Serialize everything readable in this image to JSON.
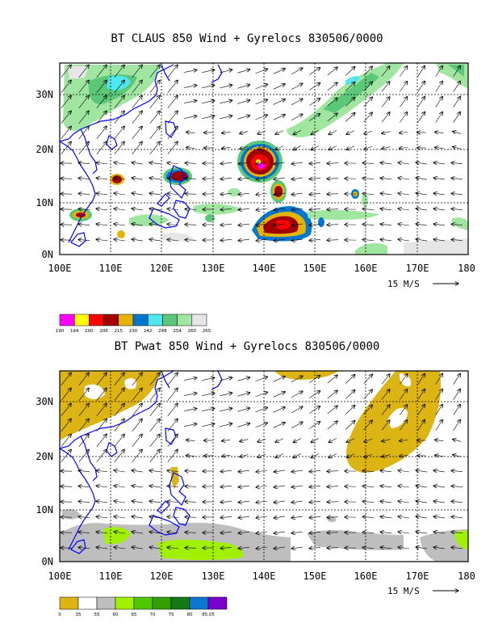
{
  "panels": [
    {
      "id": "top",
      "title": "BT CLAUS 850 Wind + Gyrelocs 830506/0000",
      "lat_labels": [
        "0N",
        "10N",
        "20N",
        "30N"
      ],
      "lon_labels": [
        "100E",
        "110E",
        "120E",
        "130E",
        "140E",
        "150E",
        "160E",
        "170E",
        "180"
      ],
      "ref_vector": "15 M/S",
      "colorbar": {
        "colors": [
          "#ff00ff",
          "#ffff00",
          "#ff0000",
          "#a00000",
          "#e6b400",
          "#0078d2",
          "#50e6f0",
          "#5ac878",
          "#a0e6a0",
          "#e6e6e6"
        ],
        "labels": [
          "190",
          "194",
          "200",
          "206",
          "215",
          "230",
          "242",
          "248",
          "254",
          "260",
          "265"
        ]
      }
    },
    {
      "id": "bottom",
      "title": "BT Pwat 850 Wind + Gyrelocs 830506/0000",
      "lat_labels": [
        "0N",
        "10N",
        "20N",
        "30N"
      ],
      "lon_labels": [
        "100E",
        "110E",
        "120E",
        "130E",
        "140E",
        "150E",
        "160E",
        "170E",
        "180"
      ],
      "ref_vector": "15 M/S",
      "colorbar": {
        "colors": [
          "#dcb414",
          "#ffffff",
          "#bebebe",
          "#a0f000",
          "#50c800",
          "#32a000",
          "#147814",
          "#0a78d2",
          "#7800c8"
        ],
        "labels": [
          "0",
          "35",
          "55",
          "60",
          "65",
          "70",
          "75",
          "80",
          "85.05"
        ]
      }
    }
  ],
  "colors": {
    "coastline": "#0000ff",
    "gridline": "#000000",
    "cloud_cold": "#a00000",
    "pwat_low": "#dcb414",
    "pwat_mid": "#bebebe",
    "pwat_high": "#a0f000"
  }
}
